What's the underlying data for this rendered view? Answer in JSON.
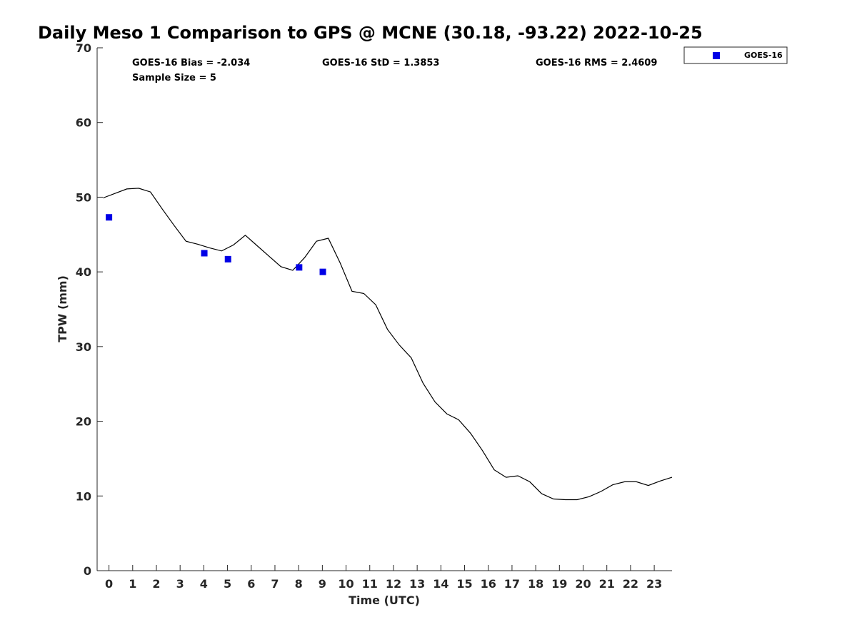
{
  "chart_data": {
    "type": "line",
    "title": "Daily Meso 1 Comparison to GPS @ MCNE (30.18, -93.22) 2022-10-25",
    "xlabel": "Time (UTC)",
    "ylabel": "TPW (mm)",
    "xlim": [
      -0.5,
      23.75
    ],
    "ylim": [
      0,
      70
    ],
    "xticks": [
      0,
      1,
      2,
      3,
      4,
      5,
      6,
      7,
      8,
      9,
      10,
      11,
      12,
      13,
      14,
      15,
      16,
      17,
      18,
      19,
      20,
      21,
      22,
      23
    ],
    "yticks": [
      0,
      10,
      20,
      30,
      40,
      50,
      60,
      70
    ],
    "grid": false,
    "legend_position": "top-right, outside plot",
    "stats": {
      "bias": "GOES-16 Bias = -2.034",
      "std": "GOES-16 StD = 1.3853",
      "rms": "GOES-16 RMS = 2.4609",
      "sample": "Sample Size = 5"
    },
    "series": [
      {
        "kind": "line",
        "color": "#000000",
        "x": [
          -0.25,
          0.25,
          0.75,
          1.25,
          1.75,
          2.25,
          2.75,
          3.25,
          3.75,
          4.25,
          4.75,
          5.25,
          5.75,
          6.25,
          6.75,
          7.25,
          7.75,
          8.25,
          8.75,
          9.25,
          9.75,
          10.25,
          10.75,
          11.25,
          11.75,
          12.25,
          12.75,
          13.25,
          13.75,
          14.25,
          14.75,
          15.25,
          15.75,
          16.25,
          16.75,
          17.25,
          17.75,
          18.25,
          18.75,
          19.25,
          19.75,
          20.25,
          20.75,
          21.25,
          21.75,
          22.25,
          22.75,
          23.25,
          23.75
        ],
        "y": [
          49.9,
          50.5,
          51.1,
          51.2,
          50.7,
          48.4,
          46.2,
          44.1,
          43.7,
          43.2,
          42.8,
          43.6,
          44.9,
          43.5,
          42.1,
          40.7,
          40.2,
          41.9,
          44.1,
          44.5,
          41.2,
          37.4,
          37.1,
          35.6,
          32.3,
          30.2,
          28.5,
          25.1,
          22.6,
          21.0,
          20.2,
          18.4,
          16.1,
          13.5,
          12.5,
          12.7,
          11.9,
          10.3,
          9.6,
          9.5,
          9.5,
          9.9,
          10.6,
          11.5,
          11.9,
          11.9,
          11.4,
          12.0,
          12.5
        ]
      },
      {
        "kind": "scatter",
        "name": "GOES-16",
        "color": "#0000e6",
        "marker": "square",
        "x": [
          0.0,
          4.02,
          5.02,
          8.02,
          9.02
        ],
        "y": [
          47.3,
          42.5,
          41.7,
          40.6,
          40.0
        ]
      }
    ]
  }
}
